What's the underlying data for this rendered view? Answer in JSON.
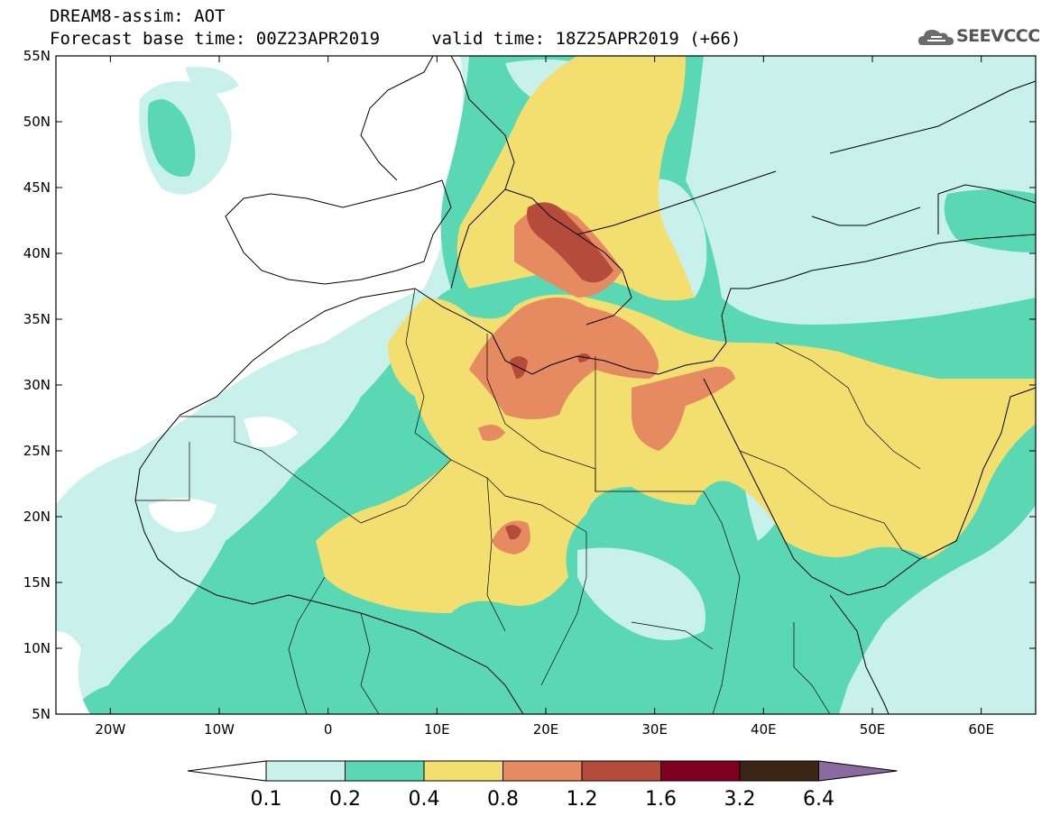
{
  "header": {
    "title_line1": "DREAM8-assim: AOT",
    "title_line2": "Forecast base time: 00Z23APR2019     valid time: 18Z25APR2019 (+66)",
    "logo_text": "SEEVCCC"
  },
  "map_data": {
    "type": "filled-contour-map",
    "variable": "AOT",
    "lon_range": [
      -25,
      65
    ],
    "lat_range": [
      5,
      55
    ],
    "lon_ticks": [
      {
        "value": -20,
        "label": "20W"
      },
      {
        "value": -10,
        "label": "10W"
      },
      {
        "value": 0,
        "label": "0"
      },
      {
        "value": 10,
        "label": "10E"
      },
      {
        "value": 20,
        "label": "20E"
      },
      {
        "value": 30,
        "label": "30E"
      },
      {
        "value": 40,
        "label": "40E"
      },
      {
        "value": 50,
        "label": "50E"
      },
      {
        "value": 60,
        "label": "60E"
      }
    ],
    "lat_ticks": [
      {
        "value": 55,
        "label": "55N"
      },
      {
        "value": 50,
        "label": "50N"
      },
      {
        "value": 45,
        "label": "45N"
      },
      {
        "value": 40,
        "label": "40N"
      },
      {
        "value": 35,
        "label": "35N"
      },
      {
        "value": 30,
        "label": "30N"
      },
      {
        "value": 25,
        "label": "25N"
      },
      {
        "value": 20,
        "label": "20N"
      },
      {
        "value": 15,
        "label": "15N"
      },
      {
        "value": 10,
        "label": "10N"
      },
      {
        "value": 5,
        "label": "5N"
      }
    ],
    "colorbar": {
      "levels": [
        "0.1",
        "0.2",
        "0.4",
        "0.8",
        "1.2",
        "1.6",
        "3.2",
        "6.4"
      ],
      "colors": [
        "#ffffff",
        "#c9f1eb",
        "#5ad8b4",
        "#f3df70",
        "#e68a62",
        "#b54b3b",
        "#800020",
        "#3b2514",
        "#8b6aa0"
      ]
    }
  }
}
